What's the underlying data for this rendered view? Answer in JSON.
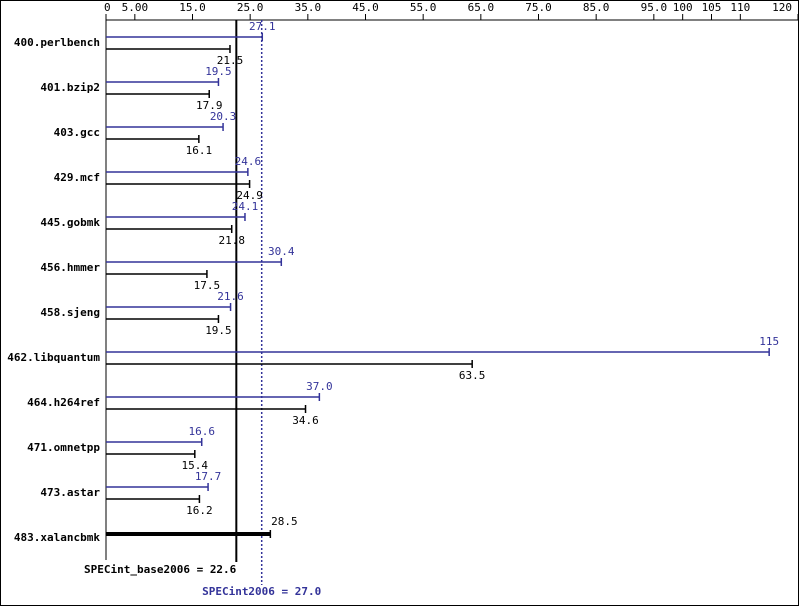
{
  "chart_data": {
    "type": "bar",
    "categories": [
      "400.perlbench",
      "401.bzip2",
      "403.gcc",
      "429.mcf",
      "445.gobmk",
      "456.hmmer",
      "458.sjeng",
      "462.libquantum",
      "464.h264ref",
      "471.omnetpp",
      "473.astar",
      "483.xalancbmk"
    ],
    "series": [
      {
        "name": "SPECint2006",
        "color": "#333399",
        "values": [
          27.1,
          19.5,
          20.3,
          24.6,
          24.1,
          30.4,
          21.6,
          115,
          37.0,
          16.6,
          17.7,
          null
        ],
        "value_labels": [
          "27.1",
          "19.5",
          "20.3",
          "24.6",
          "24.1",
          "30.4",
          "21.6",
          "115",
          "37.0",
          "16.6",
          "17.7",
          null
        ]
      },
      {
        "name": "SPECint_base2006",
        "color": "#000000",
        "values": [
          21.5,
          17.9,
          16.1,
          24.9,
          21.8,
          17.5,
          19.5,
          63.5,
          34.6,
          15.4,
          16.2,
          28.5
        ]
      }
    ],
    "xlim": [
      0,
      120
    ],
    "xticks": [
      0,
      {
        "value": 5,
        "label": "5.00"
      },
      {
        "value": 15,
        "label": "15.0"
      },
      {
        "value": 25,
        "label": "25.0"
      },
      {
        "value": 35,
        "label": "35.0"
      },
      {
        "value": 45,
        "label": "45.0"
      },
      {
        "value": 55,
        "label": "55.0"
      },
      {
        "value": 65,
        "label": "65.0"
      },
      {
        "value": 75,
        "label": "75.0"
      },
      {
        "value": 85,
        "label": "85.0"
      },
      {
        "value": 95,
        "label": "95.0"
      },
      100,
      105,
      110,
      120
    ],
    "reference_lines": [
      {
        "label": "SPECint_base2006 = 22.6",
        "value": 22.6,
        "color": "#000000"
      },
      {
        "label": "SPECint2006 = 27.0",
        "value": 27.0,
        "color": "#333399"
      }
    ]
  }
}
